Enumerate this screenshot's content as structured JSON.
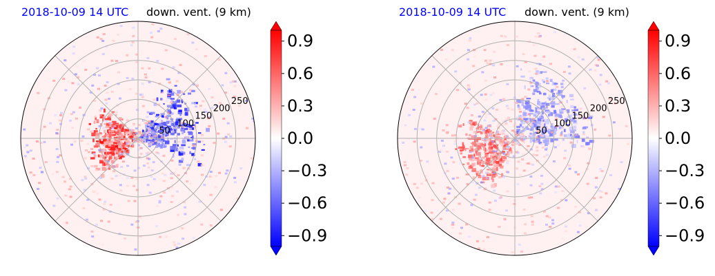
{
  "chart_data": [
    {
      "type": "heatmap",
      "projection": "polar",
      "title_left": "2018-10-09 14 UTC",
      "title_right": "down. vent. (9 km)",
      "title_left_color": "#0000ff",
      "radial_ticks": [
        50,
        100,
        150,
        200,
        250
      ],
      "radial_range": [
        0,
        300
      ],
      "grid": true,
      "colormap": "bwr",
      "colorbar": {
        "ticks": [
          0.9,
          0.6,
          0.3,
          0.0,
          -0.3,
          -0.6,
          -0.9
        ],
        "tick_labels": [
          "0.9",
          "0.6",
          "0.3",
          "0.0",
          "−0.3",
          "−0.6",
          "−0.9"
        ],
        "range": [
          -1.0,
          1.0
        ],
        "extend": "both"
      },
      "field_summary": {
        "positive_core": {
          "azimuth_deg": 180,
          "radius_km": 40,
          "value": 1.0
        },
        "negative_core": {
          "azimuth_deg": 20,
          "radius_km": 60,
          "value": -1.0
        }
      }
    },
    {
      "type": "heatmap",
      "projection": "polar",
      "title_left": "2018-10-09 14 UTC",
      "title_right": "down. vent. (9 km)",
      "title_left_color": "#0000ff",
      "radial_ticks": [
        50,
        100,
        150,
        200,
        250
      ],
      "radial_range": [
        0,
        300
      ],
      "grid": true,
      "colormap": "bwr",
      "colorbar": {
        "ticks": [
          0.9,
          0.6,
          0.3,
          0.0,
          -0.3,
          -0.6,
          -0.9
        ],
        "tick_labels": [
          "0.9",
          "0.6",
          "0.3",
          "0.0",
          "−0.3",
          "−0.6",
          "−0.9"
        ],
        "range": [
          -1.0,
          1.0
        ],
        "extend": "both"
      },
      "field_summary": {
        "positive_core": {
          "azimuth_deg": 200,
          "radius_km": 60,
          "value": 0.8
        },
        "negative_core": {
          "azimuth_deg": 40,
          "radius_km": 80,
          "value": -0.6
        }
      }
    }
  ]
}
